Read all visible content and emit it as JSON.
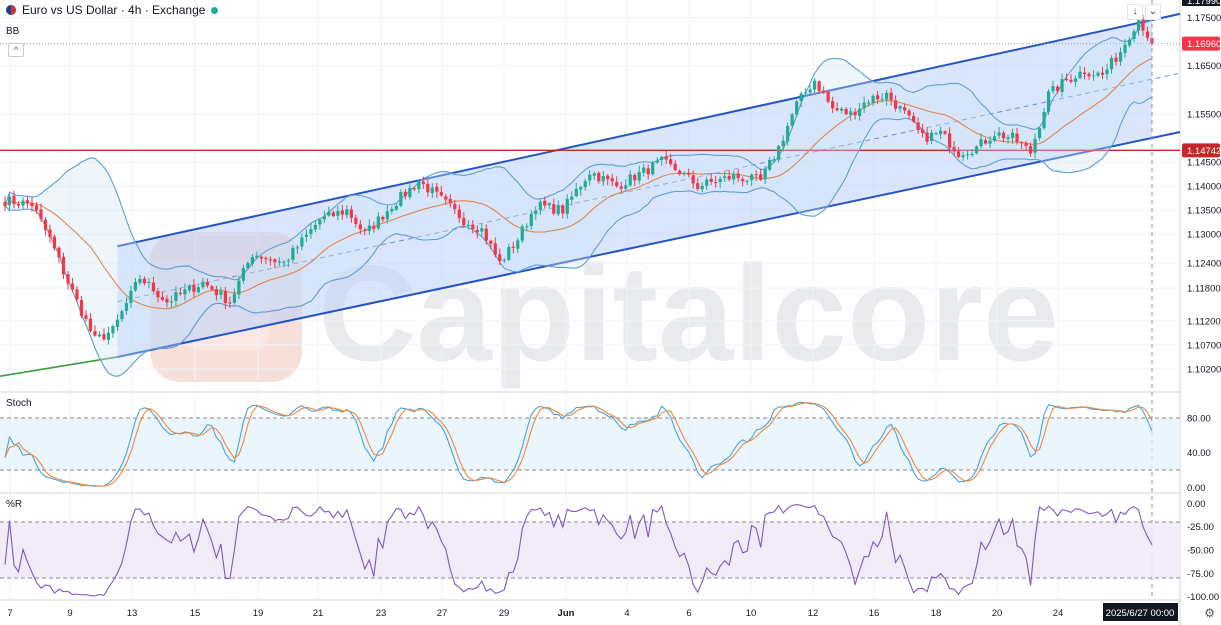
{
  "header": {
    "title": "Euro vs US Dollar · 4h · Exchange",
    "indicator_main": "BB",
    "indicator_stoch": "Stoch",
    "indicator_r": "%R"
  },
  "watermark": "Capitalcore",
  "colors": {
    "up": "#22ab94",
    "down": "#f23645",
    "channel_line": "#2454c4",
    "channel_fill": "#bdd0f7",
    "bb_band": "#5d9fcf",
    "bb_basis": "#e08550",
    "support": "#c62828",
    "trendline": "#3f9b3f",
    "stoch_k": "#4aa3d8",
    "stoch_d": "#f0883e",
    "wr_line": "#7e57c2"
  },
  "chart_data": [
    {
      "type": "candlestick",
      "panel": "price",
      "y_ticks": [
        1.102,
        1.107,
        1.112,
        1.1188,
        1.124,
        1.13,
        1.135,
        1.14,
        1.145,
        1.155,
        1.165,
        1.175
      ],
      "y_tick_labels": [
        "1.10200",
        "1.10700",
        "1.11200",
        "1.11800",
        "1.12400",
        "1.13000",
        "1.13500",
        "1.14000",
        "1.14500",
        "1.15500",
        "1.16500",
        "1.17500"
      ],
      "top_partial_label": "1.17990",
      "price_label": "1.16960",
      "price_value": 1.1696,
      "support_label": "1.14742",
      "support_value": 1.14742,
      "x_labels": [
        "7",
        "9",
        "13",
        "15",
        "19",
        "21",
        "23",
        "27",
        "29",
        "Jun",
        "4",
        "6",
        "10",
        "12",
        "16",
        "18",
        "20",
        "24"
      ],
      "cursor_label": "2025/6/27  00:00",
      "anchors": [
        [
          0,
          1.137
        ],
        [
          6,
          1.1362
        ],
        [
          10,
          1.129
        ],
        [
          14,
          1.12
        ],
        [
          20,
          1.108
        ],
        [
          24,
          1.11
        ],
        [
          30,
          1.121
        ],
        [
          36,
          1.116
        ],
        [
          44,
          1.12
        ],
        [
          50,
          1.116
        ],
        [
          55,
          1.126
        ],
        [
          62,
          1.124
        ],
        [
          70,
          1.133
        ],
        [
          76,
          1.135
        ],
        [
          80,
          1.13
        ],
        [
          86,
          1.136
        ],
        [
          92,
          1.141
        ],
        [
          96,
          1.138
        ],
        [
          102,
          1.133
        ],
        [
          106,
          1.131
        ],
        [
          110,
          1.124
        ],
        [
          114,
          1.129
        ],
        [
          118,
          1.136
        ],
        [
          124,
          1.135
        ],
        [
          130,
          1.143
        ],
        [
          136,
          1.14
        ],
        [
          140,
          1.142
        ],
        [
          146,
          1.145
        ],
        [
          150,
          1.143
        ],
        [
          154,
          1.14
        ],
        [
          158,
          1.141
        ],
        [
          162,
          1.142
        ],
        [
          168,
          1.141
        ],
        [
          172,
          1.148
        ],
        [
          176,
          1.157
        ],
        [
          180,
          1.162
        ],
        [
          184,
          1.156
        ],
        [
          188,
          1.155
        ],
        [
          192,
          1.158
        ],
        [
          196,
          1.159
        ],
        [
          200,
          1.155
        ],
        [
          204,
          1.15
        ],
        [
          208,
          1.151
        ],
        [
          212,
          1.147
        ],
        [
          216,
          1.148
        ],
        [
          220,
          1.151
        ],
        [
          224,
          1.15
        ],
        [
          228,
          1.147
        ],
        [
          232,
          1.159
        ],
        [
          236,
          1.162
        ],
        [
          240,
          1.164
        ],
        [
          244,
          1.163
        ],
        [
          248,
          1.168
        ],
        [
          252,
          1.175
        ],
        [
          255,
          1.1696
        ]
      ],
      "channel": {
        "upper": [
          [
            25,
            1.1275
          ],
          [
            255,
            1.1745
          ]
        ],
        "lower": [
          [
            25,
            1.1045
          ],
          [
            255,
            1.15
          ]
        ],
        "mid": [
          [
            25,
            1.116
          ],
          [
            255,
            1.1622
          ]
        ]
      },
      "trendline": [
        [
          0,
          1.1005
        ],
        [
          25,
          1.1045
        ]
      ]
    },
    {
      "type": "line",
      "panel": "stoch",
      "name": "Stoch",
      "y_ticks": [
        80,
        40,
        0
      ],
      "y_tick_labels": [
        "80.00",
        "40.00",
        "0.00"
      ],
      "band": [
        20,
        80
      ]
    },
    {
      "type": "line",
      "panel": "williams_r",
      "name": "%R",
      "y_ticks": [
        0,
        -25,
        -50,
        -75,
        -100
      ],
      "y_tick_labels": [
        "0.00",
        "-25.00",
        "-50.00",
        "-75.00",
        "-100.00"
      ],
      "band": [
        -80,
        -20
      ]
    }
  ]
}
